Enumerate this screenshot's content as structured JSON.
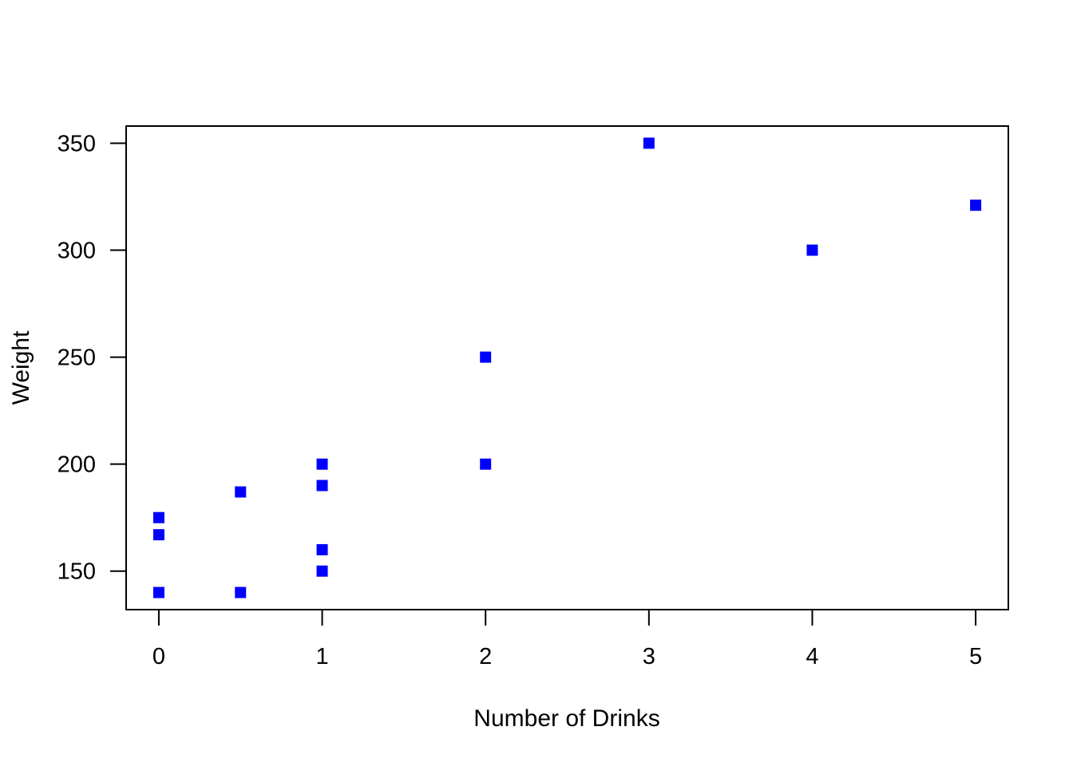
{
  "chart_data": {
    "type": "scatter",
    "title": "",
    "xlabel": "Number of Drinks",
    "ylabel": "Weight",
    "xlim": [
      -0.2,
      5.2
    ],
    "ylim": [
      132,
      358
    ],
    "xticks": [
      0,
      1,
      2,
      3,
      4,
      5
    ],
    "yticks": [
      150,
      200,
      250,
      300,
      350
    ],
    "grid": false,
    "legend": "none",
    "marker": "square",
    "marker_color": "#0000ff",
    "points": [
      {
        "x": 0,
        "y": 175
      },
      {
        "x": 0,
        "y": 167
      },
      {
        "x": 0,
        "y": 140
      },
      {
        "x": 0.5,
        "y": 187
      },
      {
        "x": 0.5,
        "y": 140
      },
      {
        "x": 1,
        "y": 200
      },
      {
        "x": 1,
        "y": 190
      },
      {
        "x": 1,
        "y": 160
      },
      {
        "x": 1,
        "y": 150
      },
      {
        "x": 2,
        "y": 250
      },
      {
        "x": 2,
        "y": 200
      },
      {
        "x": 3,
        "y": 350
      },
      {
        "x": 4,
        "y": 300
      },
      {
        "x": 5,
        "y": 321
      }
    ]
  }
}
